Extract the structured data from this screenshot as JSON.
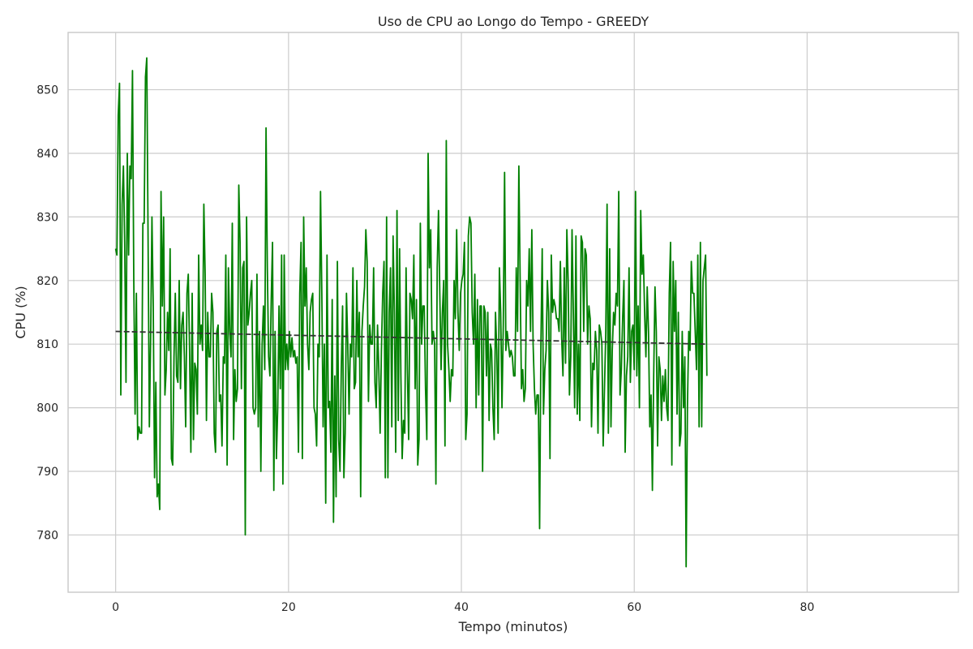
{
  "chart_data": {
    "type": "line",
    "title": "Uso de CPU ao Longo do Tempo - GREEDY",
    "xlabel": "Tempo (minutos)",
    "ylabel": "CPU (%)",
    "xlim": [
      -5.5,
      97.5
    ],
    "ylim": [
      771,
      859
    ],
    "xticks": [
      0,
      20,
      40,
      60,
      80
    ],
    "yticks": [
      780,
      790,
      800,
      810,
      820,
      830,
      840,
      850
    ],
    "grid": true,
    "x_start": 0,
    "x_step": 0.15,
    "series": [
      {
        "role": "data",
        "color": "#008000",
        "values": [
          825,
          824,
          846,
          851,
          802,
          832,
          838,
          826,
          804,
          840,
          824,
          838,
          836,
          853,
          820,
          799,
          818,
          795,
          797,
          796,
          796,
          829,
          829,
          852,
          855,
          827,
          797,
          811,
          830,
          816,
          789,
          804,
          786,
          788,
          784,
          834,
          816,
          830,
          802,
          806,
          815,
          809,
          825,
          792,
          791,
          808,
          818,
          805,
          804,
          820,
          803,
          813,
          815,
          808,
          797,
          818,
          821,
          809,
          793,
          818,
          795,
          807,
          806,
          799,
          824,
          810,
          813,
          809,
          832,
          821,
          798,
          815,
          808,
          808,
          818,
          815,
          796,
          793,
          812,
          813,
          801,
          802,
          794,
          808,
          807,
          824,
          791,
          822,
          812,
          808,
          829,
          795,
          806,
          801,
          803,
          835,
          826,
          803,
          822,
          823,
          780,
          830,
          813,
          815,
          818,
          820,
          800,
          799,
          800,
          821,
          797,
          812,
          790,
          810,
          816,
          806,
          844,
          822,
          808,
          805,
          817,
          826,
          787,
          812,
          792,
          800,
          816,
          803,
          824,
          788,
          824,
          806,
          810,
          806,
          812,
          808,
          811,
          808,
          809,
          807,
          808,
          793,
          818,
          826,
          792,
          830,
          816,
          822,
          810,
          806,
          815,
          817,
          818,
          800,
          799,
          794,
          810,
          808,
          834,
          818,
          797,
          810,
          785,
          824,
          800,
          801,
          793,
          817,
          782,
          805,
          786,
          823,
          795,
          790,
          806,
          816,
          789,
          796,
          818,
          810,
          799,
          810,
          808,
          822,
          803,
          804,
          820,
          808,
          815,
          786,
          812,
          816,
          819,
          828,
          823,
          801,
          813,
          810,
          810,
          822,
          804,
          800,
          813,
          806,
          796,
          809,
          818,
          823,
          789,
          830,
          789,
          815,
          822,
          797,
          827,
          815,
          793,
          831,
          798,
          825,
          805,
          792,
          798,
          796,
          822,
          806,
          795,
          818,
          817,
          814,
          824,
          803,
          817,
          791,
          795,
          829,
          810,
          816,
          816,
          803,
          795,
          840,
          822,
          828,
          810,
          812,
          810,
          788,
          822,
          831,
          818,
          806,
          815,
          820,
          794,
          842,
          810,
          806,
          801,
          806,
          805,
          820,
          814,
          828,
          815,
          809,
          818,
          820,
          821,
          826,
          795,
          799,
          827,
          830,
          829,
          815,
          810,
          821,
          800,
          817,
          802,
          816,
          816,
          790,
          816,
          815,
          805,
          815,
          798,
          810,
          809,
          800,
          795,
          815,
          809,
          796,
          822,
          815,
          800,
          813,
          837,
          809,
          812,
          810,
          808,
          809,
          808,
          805,
          805,
          822,
          812,
          838,
          820,
          803,
          806,
          801,
          803,
          820,
          816,
          825,
          812,
          828,
          810,
          803,
          799,
          802,
          802,
          781,
          810,
          825,
          799,
          806,
          809,
          820,
          815,
          792,
          824,
          815,
          817,
          816,
          814,
          814,
          812,
          823,
          811,
          805,
          822,
          807,
          828,
          820,
          802,
          808,
          828,
          815,
          800,
          827,
          799,
          810,
          798,
          827,
          826,
          812,
          825,
          824,
          810,
          816,
          814,
          797,
          807,
          806,
          812,
          809,
          796,
          813,
          812,
          810,
          794,
          803,
          812,
          832,
          796,
          825,
          797,
          809,
          815,
          813,
          818,
          816,
          834,
          802,
          806,
          814,
          820,
          793,
          805,
          808,
          822,
          804,
          812,
          813,
          806,
          834,
          805,
          816,
          800,
          831,
          821,
          824,
          815,
          808,
          819,
          812,
          797,
          802,
          787,
          805,
          819,
          812,
          794,
          808,
          806,
          798,
          805,
          801,
          806,
          800,
          798,
          818,
          826,
          791,
          823,
          812,
          820,
          799,
          815,
          794,
          796,
          812,
          800,
          808,
          775,
          800,
          812,
          809,
          823,
          818,
          818,
          812,
          806,
          824,
          797,
          826,
          797,
          820,
          822,
          824,
          805
        ]
      },
      {
        "role": "trend",
        "color": "#333333",
        "values": [
          812,
          810
        ]
      }
    ]
  }
}
